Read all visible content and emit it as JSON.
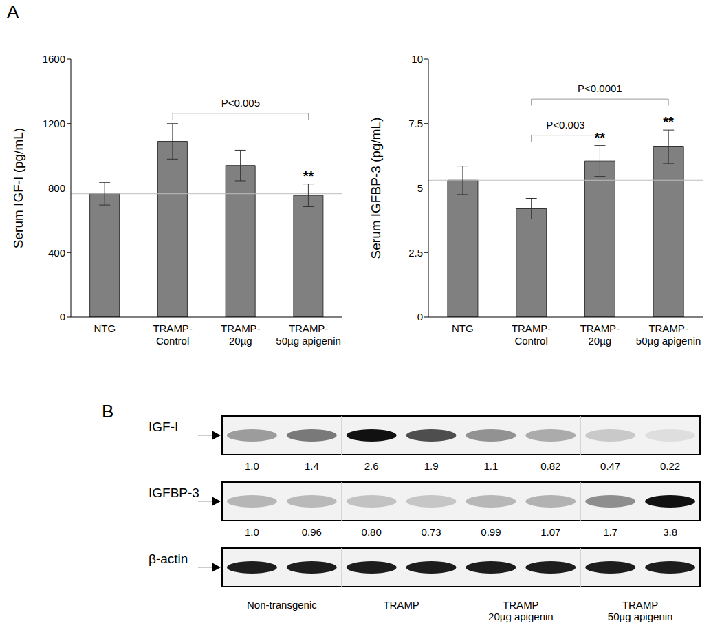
{
  "panel_labels": [
    "A",
    "B"
  ],
  "chart_data": [
    {
      "type": "bar",
      "y_label": "Serum IGF-I (pg/mL)",
      "categories": [
        "NTG",
        "TRAMP-\nControl",
        "TRAMP-\n20µg",
        "TRAMP-\n50µg apigenin"
      ],
      "values": [
        765,
        1090,
        940,
        755
      ],
      "errors": [
        70,
        110,
        95,
        70
      ],
      "color": "#808080",
      "ylim": [
        0,
        1600
      ],
      "yticks": [
        0,
        400,
        800,
        1200,
        1600
      ],
      "grid": false,
      "reference_line": 765,
      "significance": [
        null,
        null,
        null,
        "**"
      ],
      "annotations": [
        {
          "text": "P<0.005",
          "from": "TRAMP-\nControl",
          "to": "TRAMP-\n50µg apigenin"
        }
      ]
    },
    {
      "type": "bar",
      "y_label": "Serum IGFBP-3 (pg/mL)",
      "categories": [
        "NTG",
        "TRAMP-\nControl",
        "TRAMP-\n20µg",
        "TRAMP-\n50µg apigenin"
      ],
      "values": [
        5.3,
        4.2,
        6.05,
        6.6
      ],
      "errors": [
        0.55,
        0.4,
        0.6,
        0.65
      ],
      "color": "#808080",
      "ylim": [
        0,
        10
      ],
      "yticks": [
        0,
        2.5,
        5,
        7.5,
        10
      ],
      "grid": false,
      "reference_line": 5.3,
      "significance": [
        null,
        null,
        "**",
        "**"
      ],
      "annotations": [
        {
          "text": "P<0.003",
          "from": "TRAMP-\nControl",
          "to": "TRAMP-\n20µg"
        },
        {
          "text": "P<0.0001",
          "from": "TRAMP-\nControl",
          "to": "TRAMP-\n50µg apigenin"
        }
      ]
    }
  ],
  "blot": {
    "rows": [
      {
        "label": "IGF-I",
        "values": [
          1.0,
          1.4,
          2.6,
          1.9,
          1.1,
          0.82,
          0.47,
          0.22
        ],
        "value_labels": [
          "1.0",
          "1.4",
          "2.6",
          "1.9",
          "1.1",
          "0.82",
          "0.47",
          "0.22"
        ]
      },
      {
        "label": "IGFBP-3",
        "values": [
          1.0,
          0.96,
          0.8,
          0.73,
          0.99,
          1.07,
          1.7,
          3.8
        ],
        "value_labels": [
          "1.0",
          "0.96",
          "0.80",
          "0.73",
          "0.99",
          "1.07",
          "1.7",
          "3.8"
        ]
      },
      {
        "label": "β-actin"
      }
    ],
    "groups": [
      "Non-transgenic",
      "TRAMP",
      "TRAMP\n20µg apigenin",
      "TRAMP\n50µg apigenin"
    ]
  }
}
